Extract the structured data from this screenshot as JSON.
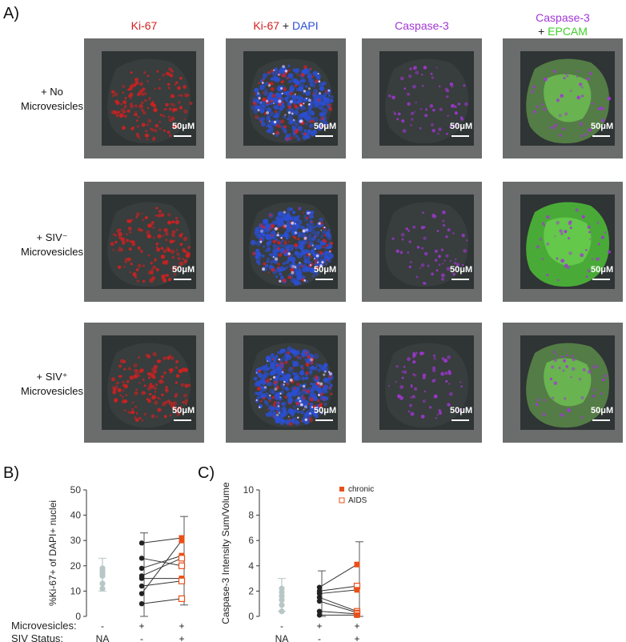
{
  "panel_labels": {
    "a": "A)",
    "b": "B)",
    "c": "C)"
  },
  "column_headers": {
    "col1": {
      "part1": "Ki-67"
    },
    "col2": {
      "part1": "Ki-67",
      "sep": " + ",
      "part2": "DAPI"
    },
    "col3": {
      "part1": "Caspase-3"
    },
    "col4": {
      "part1": "Caspase-3",
      "sep": "+ ",
      "part2": "EPCAM"
    }
  },
  "row_headers": [
    {
      "line1": "+ No",
      "line2": "Microvesicles"
    },
    {
      "line1": "+ SIV⁻",
      "line2": "Microvesicles"
    },
    {
      "line1": "+ SIV⁺",
      "line2": "Microvesicles"
    }
  ],
  "scale_bar_label": "50μM",
  "colors": {
    "ki67": "#d42020",
    "dapi": "#2a4fd6",
    "caspase": "#a236d6",
    "epcam": "#3ecf2a",
    "tile_bg": "#6b6d6d",
    "chronic": "#e8501a",
    "control": "#b8c6c6",
    "paired": "#222222"
  },
  "row_labels": [
    "Microvesicles:",
    "SIV Status:"
  ],
  "chart_data": [
    {
      "type": "scatter",
      "panel": "B)",
      "ylabel": "%Ki-67+ of DAPI+ nuclei",
      "ylim": [
        0,
        50
      ],
      "yticks": [
        0,
        10,
        20,
        30,
        40,
        50
      ],
      "categories": [
        {
          "microvesicles": "-",
          "siv_status": "NA"
        },
        {
          "microvesicles": "+",
          "siv_status": "-"
        },
        {
          "microvesicles": "+",
          "siv_status": "+"
        }
      ],
      "control": {
        "values": [
          11,
          13,
          16,
          17,
          18,
          19
        ],
        "mean": 16.5,
        "err": 6.5
      },
      "paired": [
        {
          "minus": 29,
          "plus": 31
        },
        {
          "minus": 23,
          "plus": 20
        },
        {
          "minus": 19,
          "plus": 24
        },
        {
          "minus": 16,
          "plus": 23
        },
        {
          "minus": 15,
          "plus": 15
        },
        {
          "minus": 12,
          "plus": 14
        },
        {
          "minus": 9,
          "plus": 30
        },
        {
          "minus": 5,
          "plus": 7
        }
      ],
      "minus_mean": {
        "mean": 16,
        "err": 17
      },
      "plus_mean": {
        "mean": 22,
        "err": 17.5
      }
    },
    {
      "type": "scatter",
      "panel": "C)",
      "ylabel": "Caspase-3 Intensity Sum/Volume",
      "ylim": [
        0,
        10
      ],
      "yticks": [
        0,
        2,
        4,
        6,
        8,
        10
      ],
      "categories": [
        {
          "microvesicles": "-",
          "siv_status": "NA"
        },
        {
          "microvesicles": "+",
          "siv_status": "-"
        },
        {
          "microvesicles": "+",
          "siv_status": "+"
        }
      ],
      "legend": [
        "chronic",
        "AIDS"
      ],
      "legend_position": "top-right",
      "control": {
        "values": [
          0.4,
          0.9,
          1.3,
          1.6,
          1.9,
          2.2
        ],
        "mean": 1.7,
        "err": 1.3
      },
      "paired": [
        {
          "minus": 2.3,
          "plus": 4.1
        },
        {
          "minus": 2.0,
          "plus": 2.4
        },
        {
          "minus": 1.8,
          "plus": 2.1
        },
        {
          "minus": 1.5,
          "plus": 0.4
        },
        {
          "minus": 1.2,
          "plus": 0.3
        },
        {
          "minus": 0.4,
          "plus": 0.2
        },
        {
          "minus": 0.1,
          "plus": 0.1
        }
      ],
      "minus_mean": {
        "mean": 1.4,
        "err": 2.2
      },
      "plus_mean": {
        "mean": 1.5,
        "err": 4.4
      }
    }
  ]
}
